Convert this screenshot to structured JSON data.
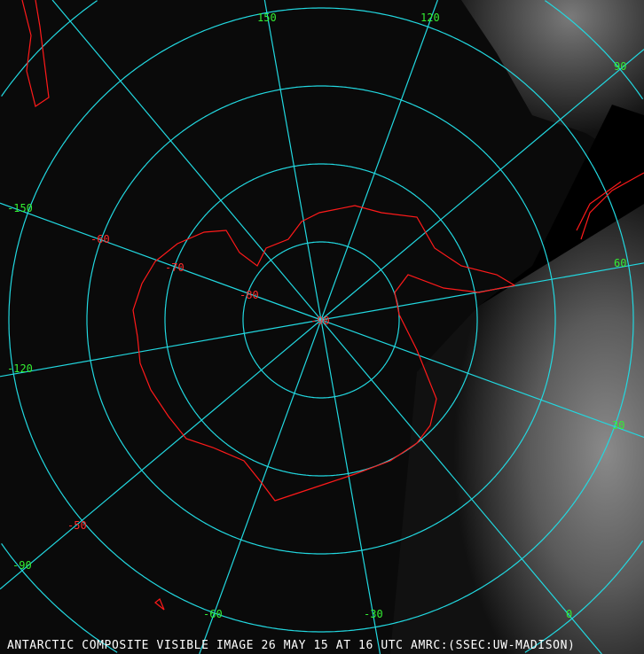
{
  "caption": "ANTARCTIC COMPOSITE VISIBLE IMAGE 26 MAY 15 AT 16 UTC AMRC:(SSEC:UW-MADISON)",
  "projection": "south-polar-stereographic",
  "colors": {
    "graticule": "#22d8e0",
    "coastline": "#ff1a1a",
    "longitude_labels": "#33ee33",
    "latitude_labels": "#ff2a2a",
    "caption": "#ffffff"
  },
  "longitude_labels": [
    "150",
    "120",
    "90",
    "60",
    "30",
    "0",
    "-30",
    "-60",
    "-90",
    "-120",
    "-150"
  ],
  "latitude_labels": [
    "-90",
    "-80",
    "-70",
    "-60",
    "-50"
  ]
}
